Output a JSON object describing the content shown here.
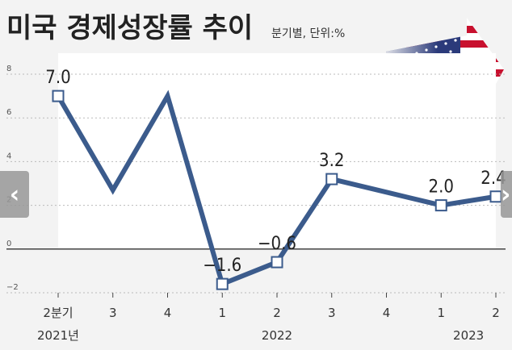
{
  "title": "미국 경제성장률 추이",
  "subtitle": "분기별, 단위:%",
  "nav": {
    "prev_icon": "‹",
    "next_icon": "›"
  },
  "colors": {
    "line": "#3b5b8c",
    "highlight": "#4a86b8",
    "plot_bg": "#ffffff",
    "page_bg": "#f3f3f3"
  },
  "chart_data": {
    "type": "line",
    "title": "미국 경제성장률 추이",
    "unit": "분기별, 단위:%",
    "categories": [
      "2분기",
      "3",
      "4",
      "1",
      "2",
      "3",
      "4",
      "1",
      "2"
    ],
    "year_labels": [
      {
        "label": "2021년",
        "index": 0
      },
      {
        "label": "2022",
        "index": 4
      },
      {
        "label": "2023",
        "index": 7.5
      }
    ],
    "values": [
      7.0,
      2.7,
      7.0,
      -1.6,
      -0.6,
      3.2,
      2.6,
      2.0,
      2.4
    ],
    "data_labels": [
      {
        "index": 0,
        "text": "7.0"
      },
      {
        "index": 3,
        "text": "−1.6"
      },
      {
        "index": 4,
        "text": "−0.6"
      },
      {
        "index": 5,
        "text": "3.2"
      },
      {
        "index": 7,
        "text": "2.0"
      },
      {
        "index": 8,
        "text": "2.4",
        "highlight": true
      }
    ],
    "marker_indices": [
      0,
      3,
      4,
      5,
      7,
      8
    ],
    "yticks": [
      {
        "value": 8,
        "label": "8"
      },
      {
        "value": 6,
        "label": "6"
      },
      {
        "value": 4,
        "label": "4"
      },
      {
        "value": 2,
        "label": "2"
      },
      {
        "value": 0,
        "label": "0"
      },
      {
        "value": -2,
        "label": "−2"
      }
    ],
    "ylim": [
      -2,
      8
    ],
    "grid": true,
    "decoration": "us-flag"
  }
}
